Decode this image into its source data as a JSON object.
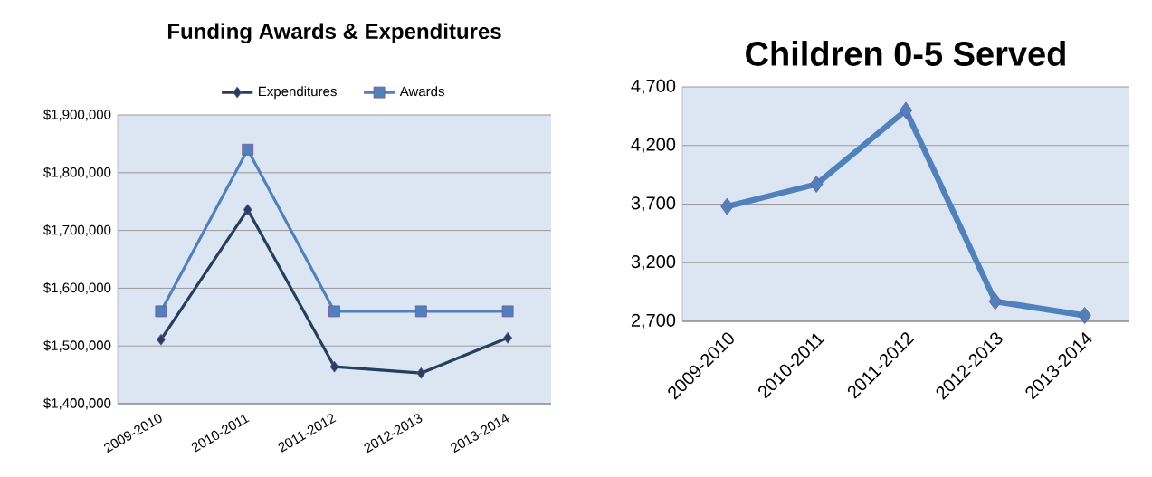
{
  "chart_data": [
    {
      "type": "line",
      "title": "Funding Awards & Expenditures",
      "categories": [
        "2009-2010",
        "2010-2011",
        "2011-2012",
        "2012-2013",
        "2013-2014"
      ],
      "series": [
        {
          "name": "Expenditures",
          "color": "#243f60",
          "marker": "diamond",
          "values": [
            1511000,
            1736000,
            1464000,
            1453000,
            1514000
          ]
        },
        {
          "name": "Awards",
          "color": "#4f81bd",
          "marker": "square",
          "values": [
            1560000,
            1840000,
            1560000,
            1560000,
            1560000
          ]
        }
      ],
      "ylim": [
        1400000,
        1900000
      ],
      "yticks": [
        {
          "value": 1400000,
          "label": "$1,400,000"
        },
        {
          "value": 1500000,
          "label": "$1,500,000"
        },
        {
          "value": 1600000,
          "label": "$1,600,000"
        },
        {
          "value": 1700000,
          "label": "$1,700,000"
        },
        {
          "value": 1800000,
          "label": "$1,800,000"
        },
        {
          "value": 1900000,
          "label": "$1,900,000"
        }
      ],
      "grid": "y",
      "legend": "top"
    },
    {
      "type": "line",
      "title": "Children 0-5 Served",
      "categories": [
        "2009-2010",
        "2010-2011",
        "2011-2012",
        "2012-2013",
        "2013-2014"
      ],
      "series": [
        {
          "color": "#4f81bd",
          "marker": "diamond",
          "values": [
            3680,
            3870,
            4500,
            2870,
            2750
          ]
        }
      ],
      "ylim": [
        2700,
        4700
      ],
      "yticks": [
        {
          "value": 2700,
          "label": "2,700"
        },
        {
          "value": 3200,
          "label": "3,200"
        },
        {
          "value": 3700,
          "label": "3,700"
        },
        {
          "value": 4200,
          "label": "4,200"
        },
        {
          "value": 4700,
          "label": "4,700"
        }
      ],
      "grid": "y",
      "legend": false
    }
  ]
}
